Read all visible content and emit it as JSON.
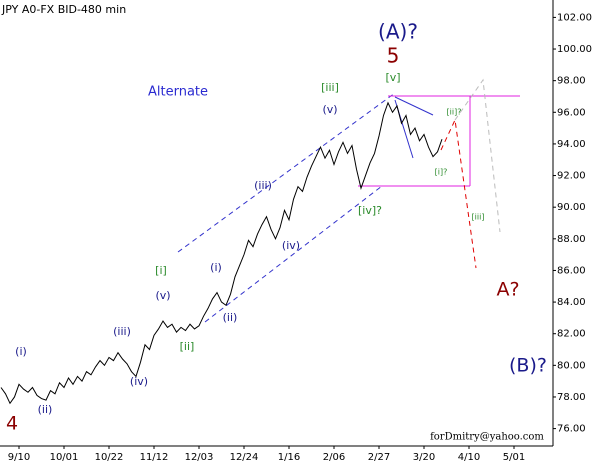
{
  "chart_data": {
    "type": "line",
    "title": "JPY A0-FX BID-480 min",
    "source": "forDmitry@yahoo.com",
    "categories": [
      null,
      null,
      null,
      null,
      "9/10",
      null,
      null,
      null,
      null,
      null,
      null,
      null,
      null,
      null,
      "10/01",
      null,
      null,
      null,
      null,
      null,
      null,
      null,
      null,
      null,
      "10/22",
      null,
      null,
      null,
      null,
      null,
      null,
      null,
      null,
      null,
      "11/12",
      null,
      null,
      null,
      null,
      null,
      null,
      null,
      null,
      null,
      "12/03",
      null,
      null,
      null,
      null,
      null,
      null,
      null,
      null,
      null,
      "12/24",
      null,
      null,
      null,
      null,
      null,
      null,
      null,
      null,
      null,
      "1/16",
      null,
      null,
      null,
      null,
      null,
      null,
      null,
      null,
      null,
      "2/06",
      null,
      null,
      null,
      null,
      null,
      null,
      null,
      null,
      null,
      "2/27",
      null,
      null,
      null,
      null,
      null,
      null,
      null,
      null,
      null,
      "3/20",
      null,
      null,
      null,
      null,
      null,
      null,
      null,
      null,
      null,
      "4/10",
      null,
      null,
      null,
      null,
      null,
      null,
      null,
      null,
      null,
      "5/01",
      null,
      null,
      null,
      null,
      null,
      null,
      null,
      null
    ],
    "series": [
      {
        "name": "JPY",
        "color": "#000000",
        "values": [
          78.6,
          78.2,
          77.6,
          78.0,
          78.8,
          78.5,
          78.3,
          78.6,
          78.1,
          77.9,
          77.8,
          78.4,
          78.2,
          78.9,
          78.6,
          79.2,
          78.8,
          79.3,
          79.0,
          79.6,
          79.4,
          79.9,
          80.3,
          80.0,
          80.5,
          80.3,
          80.8,
          80.4,
          80.1,
          79.6,
          79.3,
          80.2,
          81.3,
          81.0,
          81.9,
          82.3,
          82.8,
          82.4,
          82.6,
          82.1,
          82.4,
          82.2,
          82.6,
          82.3,
          82.5,
          83.1,
          83.6,
          84.2,
          84.6,
          84.0,
          83.8,
          84.5,
          85.6,
          86.3,
          87.0,
          87.9,
          87.5,
          88.3,
          88.9,
          89.4,
          88.6,
          88.0,
          88.7,
          89.8,
          89.2,
          90.5,
          91.3,
          91.0,
          91.9,
          92.6,
          93.2,
          93.8,
          93.1,
          93.6,
          92.7,
          93.5,
          94.1,
          93.4,
          93.9,
          92.4,
          91.2,
          92.0,
          92.8,
          93.4,
          94.5,
          95.8,
          96.6,
          96.0,
          96.4,
          95.3,
          95.8,
          94.6,
          95.0,
          94.2,
          94.6,
          93.8,
          93.2,
          93.5,
          94.3,
          null,
          null,
          null,
          null,
          null,
          null,
          null,
          null,
          null,
          null,
          null,
          null,
          null,
          null,
          null,
          null,
          null,
          null,
          null,
          null,
          null,
          null,
          null,
          null
        ]
      }
    ],
    "ylim": [
      74.9,
      103.1
    ],
    "yticks": [
      {
        "value": 76,
        "label": "76.00"
      },
      {
        "value": 78,
        "label": "78.00"
      },
      {
        "value": 80,
        "label": "80.00"
      },
      {
        "value": 82,
        "label": "82.00"
      },
      {
        "value": 84,
        "label": "84.00"
      },
      {
        "value": 86,
        "label": "86.00"
      },
      {
        "value": 88,
        "label": "88.00"
      },
      {
        "value": 90,
        "label": "90.00"
      },
      {
        "value": 92,
        "label": "92.00"
      },
      {
        "value": 94,
        "label": "94.00"
      },
      {
        "value": 96,
        "label": "96.00"
      },
      {
        "value": 98,
        "label": "98.00"
      },
      {
        "value": 100,
        "label": "100.00"
      },
      {
        "value": 102,
        "label": "102.00"
      }
    ],
    "y_axis_side": "right",
    "grid": false,
    "annotations": [
      {
        "text": "(A)?",
        "color": "#1a1a8a"
      },
      {
        "text": "5",
        "color": "#8b0000"
      },
      {
        "text": "[v]",
        "color": "#2a8a2a"
      },
      {
        "text": "[iii]",
        "color": "#2a8a2a"
      },
      {
        "text": "(v)",
        "color": "#1a1a8a"
      },
      {
        "text": "Alternate",
        "color": "#2a2ad0"
      },
      {
        "text": "(iii)",
        "color": "#1a1a8a"
      },
      {
        "text": "[ii]?",
        "color": "#2a8a2a"
      },
      {
        "text": "[i]?",
        "color": "#2a8a2a"
      },
      {
        "text": "[iv]?",
        "color": "#2a8a2a"
      },
      {
        "text": "(iv)",
        "color": "#1a1a8a"
      },
      {
        "text": "[iii]",
        "color": "#2a8a2a"
      },
      {
        "text": "[i]",
        "color": "#2a8a2a"
      },
      {
        "text": "(i)",
        "color": "#1a1a8a"
      },
      {
        "text": "(v)",
        "color": "#1a1a8a"
      },
      {
        "text": "(ii)",
        "color": "#1a1a8a"
      },
      {
        "text": "[ii]",
        "color": "#2a8a2a"
      },
      {
        "text": "(iii)",
        "color": "#1a1a8a"
      },
      {
        "text": "A?",
        "color": "#8b0000"
      },
      {
        "text": "(i)",
        "color": "#1a1a8a"
      },
      {
        "text": "(B)?",
        "color": "#1a1a8a"
      },
      {
        "text": "(iv)",
        "color": "#1a1a8a"
      },
      {
        "text": "(ii)",
        "color": "#1a1a8a"
      },
      {
        "text": "4",
        "color": "#8b0000"
      }
    ]
  }
}
